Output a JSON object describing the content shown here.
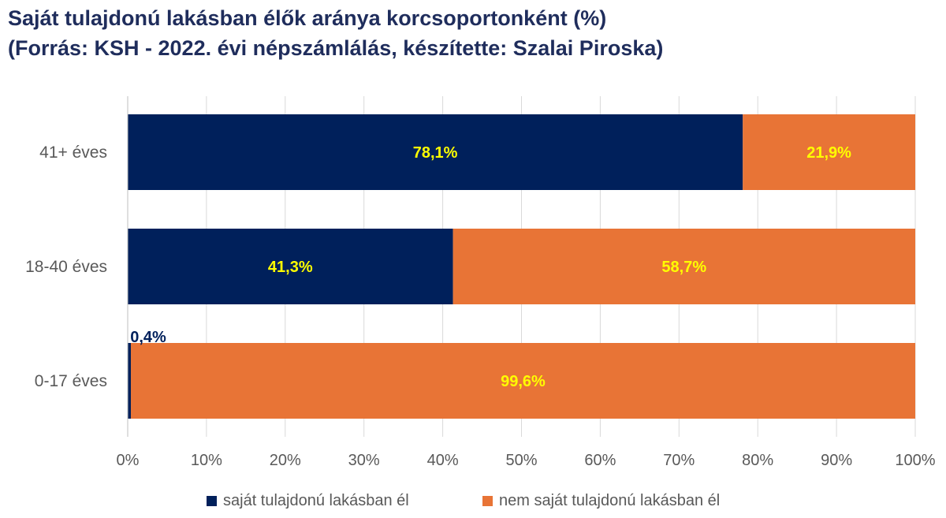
{
  "chart_data": {
    "type": "bar",
    "orientation": "horizontal",
    "stacked": true,
    "title": "Saját tulajdonú lakásban élők aránya korcsoportonként (%)",
    "subtitle": "(Forrás: KSH - 2022. évi népszámlálás, készítette: Szalai Piroska)",
    "categories": [
      "41+ éves",
      "18-40 éves",
      "0-17 éves"
    ],
    "series": [
      {
        "name": "saját tulajdonú lakásban él",
        "color": "#00205b",
        "values": [
          78.1,
          41.3,
          0.4
        ],
        "labels": [
          "78,1%",
          "41,3%",
          "0,4%"
        ]
      },
      {
        "name": "nem saját tulajdonú lakásban él",
        "color": "#e87436",
        "values": [
          21.9,
          58.7,
          99.6
        ],
        "labels": [
          "21,9%",
          "58,7%",
          "99,6%"
        ]
      }
    ],
    "xlim": [
      0,
      100
    ],
    "x_ticks": [
      0,
      10,
      20,
      30,
      40,
      50,
      60,
      70,
      80,
      90,
      100
    ],
    "x_tick_labels": [
      "0%",
      "10%",
      "20%",
      "30%",
      "40%",
      "50%",
      "60%",
      "70%",
      "80%",
      "90%",
      "100%"
    ],
    "grid": true,
    "legend_position": "bottom",
    "label_color": "#ffff00",
    "small_label_color": "#00205b"
  }
}
